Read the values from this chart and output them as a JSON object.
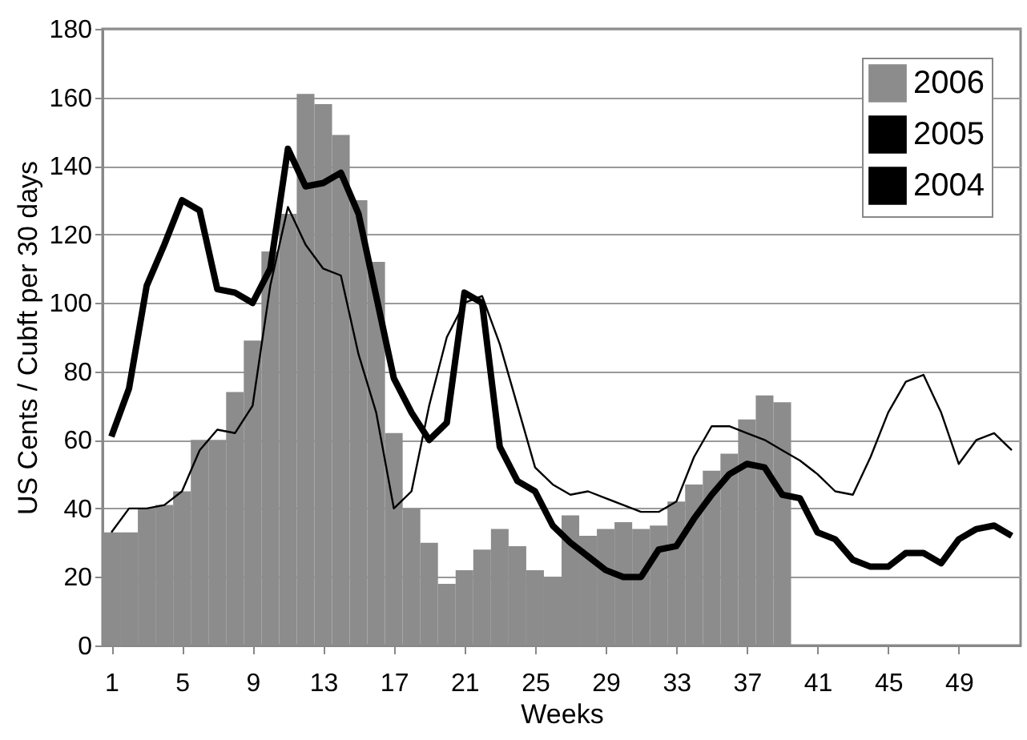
{
  "chart_data": {
    "type": "bar",
    "xlabel": "Weeks",
    "ylabel": "US Cents / Cubft per 30 days",
    "x": [
      1,
      2,
      3,
      4,
      5,
      6,
      7,
      8,
      9,
      10,
      11,
      12,
      13,
      14,
      15,
      16,
      17,
      18,
      19,
      20,
      21,
      22,
      23,
      24,
      25,
      26,
      27,
      28,
      29,
      30,
      31,
      32,
      33,
      34,
      35,
      36,
      37,
      38,
      39,
      40,
      41,
      42,
      43,
      44,
      45,
      46,
      47,
      48,
      49,
      50,
      51,
      52
    ],
    "xlim": [
      0.5,
      52.5
    ],
    "xticks": [
      1,
      5,
      9,
      13,
      17,
      21,
      25,
      29,
      33,
      37,
      41,
      45,
      49
    ],
    "ylim": [
      0,
      180
    ],
    "yticks": [
      0,
      20,
      40,
      60,
      80,
      100,
      120,
      140,
      160,
      180
    ],
    "grid": "y",
    "legend": "top right",
    "series": [
      {
        "name": "2006",
        "color": "#8c8c8c",
        "values": [
          33,
          33,
          40,
          41,
          45,
          60,
          60,
          74,
          89,
          115,
          126,
          161,
          158,
          149,
          130,
          112,
          62,
          40,
          30,
          18,
          22,
          28,
          34,
          29,
          22,
          20,
          38,
          32,
          34,
          36,
          34,
          35,
          42,
          47,
          51,
          56,
          66,
          73,
          71,
          null,
          null,
          null,
          null,
          null,
          null,
          null,
          null,
          null,
          null,
          null,
          null,
          null
        ]
      },
      {
        "name": "2005",
        "type": "line",
        "color": "#000000",
        "values": [
          61,
          75,
          105,
          117,
          130,
          127,
          104,
          103,
          100,
          110,
          145,
          134,
          135,
          138,
          126,
          102,
          78,
          68,
          60,
          65,
          103,
          100,
          58,
          48,
          45,
          35,
          30,
          26,
          22,
          20,
          20,
          28,
          29,
          37,
          44,
          50,
          53,
          52,
          44,
          43,
          33,
          31,
          25,
          23,
          23,
          27,
          27,
          24,
          31,
          34,
          35,
          32
        ]
      },
      {
        "name": "2004",
        "type": "line",
        "color": "#000000",
        "values": [
          33,
          40,
          40,
          41,
          45,
          57,
          63,
          62,
          70,
          105,
          128,
          117,
          110,
          108,
          85,
          68,
          40,
          45,
          70,
          90,
          100,
          102,
          88,
          70,
          52,
          47,
          44,
          45,
          43,
          41,
          39,
          39,
          42,
          55,
          64,
          64,
          62,
          60,
          57,
          54,
          50,
          45,
          44,
          55,
          68,
          77,
          79,
          68,
          53,
          60,
          62,
          57
        ]
      }
    ]
  }
}
